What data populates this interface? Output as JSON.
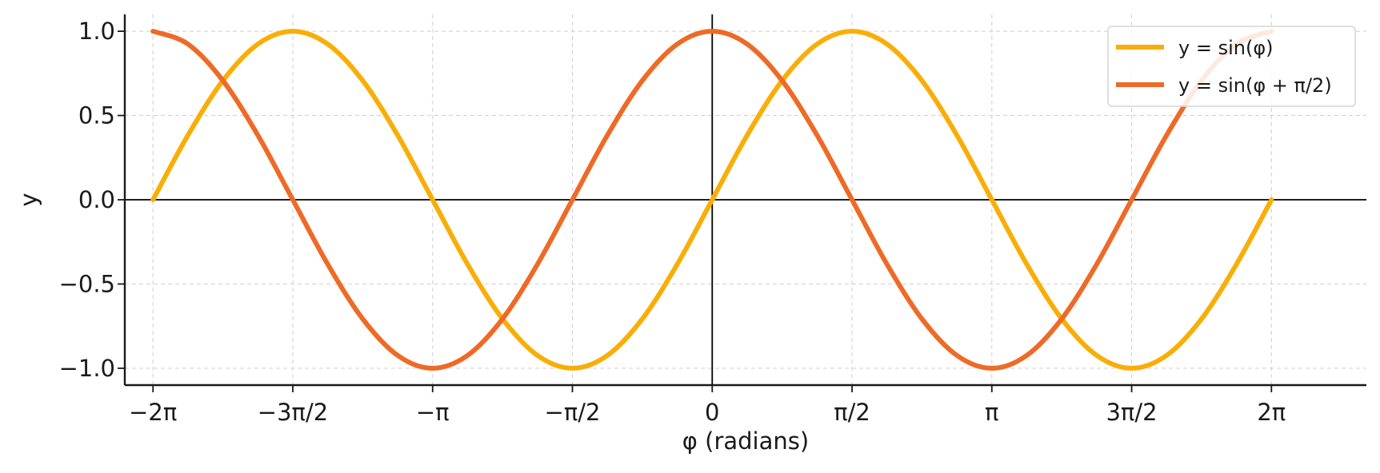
{
  "chart_data": {
    "type": "line",
    "title": "",
    "xlabel": "φ (radians)",
    "ylabel": "y",
    "xlim": [
      -6.6,
      7.35
    ],
    "ylim": [
      -1.1,
      1.1
    ],
    "x_ticks": [
      {
        "value": -6.283185,
        "label": "−2π"
      },
      {
        "value": -4.712389,
        "label": "−3π/2"
      },
      {
        "value": -3.141593,
        "label": "−π"
      },
      {
        "value": -1.570796,
        "label": "−π/2"
      },
      {
        "value": 0,
        "label": "0"
      },
      {
        "value": 1.570796,
        "label": "π/2"
      },
      {
        "value": 3.141593,
        "label": "π"
      },
      {
        "value": 4.712389,
        "label": "3π/2"
      },
      {
        "value": 6.283185,
        "label": "2π"
      }
    ],
    "y_ticks": [
      {
        "value": 1.0,
        "label": "1.0"
      },
      {
        "value": 0.5,
        "label": "0.5"
      },
      {
        "value": 0.0,
        "label": "0.0"
      },
      {
        "value": -0.5,
        "label": "−0.5"
      },
      {
        "value": -1.0,
        "label": "−1.0"
      }
    ],
    "grid": true,
    "legend_position": "top-right",
    "series": [
      {
        "name": "y = sin(φ)",
        "color": "#F9AE07",
        "x": [
          -6.283185,
          -5.890486,
          -5.497787,
          -5.105088,
          -4.712389,
          -4.31969,
          -3.926991,
          -3.534292,
          -3.141593,
          -2.748894,
          -2.356194,
          -1.963495,
          -1.570796,
          -1.178097,
          -0.785398,
          -0.392699,
          0,
          0.392699,
          0.785398,
          1.178097,
          1.570796,
          1.963495,
          2.356194,
          2.748894,
          3.141593,
          3.534292,
          3.926991,
          4.31969,
          4.712389,
          5.105088,
          5.497787,
          5.890486,
          6.283185
        ],
        "y": [
          0,
          0.3827,
          0.7071,
          0.9239,
          1.0,
          0.9239,
          0.7071,
          0.3827,
          0,
          -0.3827,
          -0.7071,
          -0.9239,
          -1.0,
          -0.9239,
          -0.7071,
          -0.3827,
          0,
          0.3827,
          0.7071,
          0.9239,
          1.0,
          0.9239,
          0.7071,
          0.3827,
          0,
          -0.3827,
          -0.7071,
          -0.9239,
          -1.0,
          -0.9239,
          -0.7071,
          -0.3827,
          0
        ]
      },
      {
        "name": "y = sin(φ + π/2)",
        "color": "#EE6A26",
        "x": [
          -6.283185,
          -5.890486,
          -5.497787,
          -5.105088,
          -4.712389,
          -4.31969,
          -3.926991,
          -3.534292,
          -3.141593,
          -2.748894,
          -2.356194,
          -1.963495,
          -1.570796,
          -1.178097,
          -0.785398,
          -0.392699,
          0,
          0.392699,
          0.785398,
          1.178097,
          1.570796,
          1.963495,
          2.356194,
          2.748894,
          3.141593,
          3.534292,
          3.926991,
          4.31969,
          4.712389,
          5.105088,
          5.497787,
          5.890486,
          6.283185
        ],
        "y": [
          1.0,
          0.9239,
          0.7071,
          0.3827,
          0,
          -0.3827,
          -0.7071,
          -0.9239,
          -1.0,
          -0.9239,
          -0.7071,
          -0.3827,
          0,
          0.3827,
          0.7071,
          0.9239,
          1.0,
          0.9239,
          0.7071,
          0.3827,
          0,
          -0.3827,
          -0.7071,
          -0.9239,
          -1.0,
          -0.9239,
          -0.7071,
          -0.3827,
          0,
          0.3827,
          0.7071,
          0.9239,
          1.0
        ]
      }
    ]
  }
}
